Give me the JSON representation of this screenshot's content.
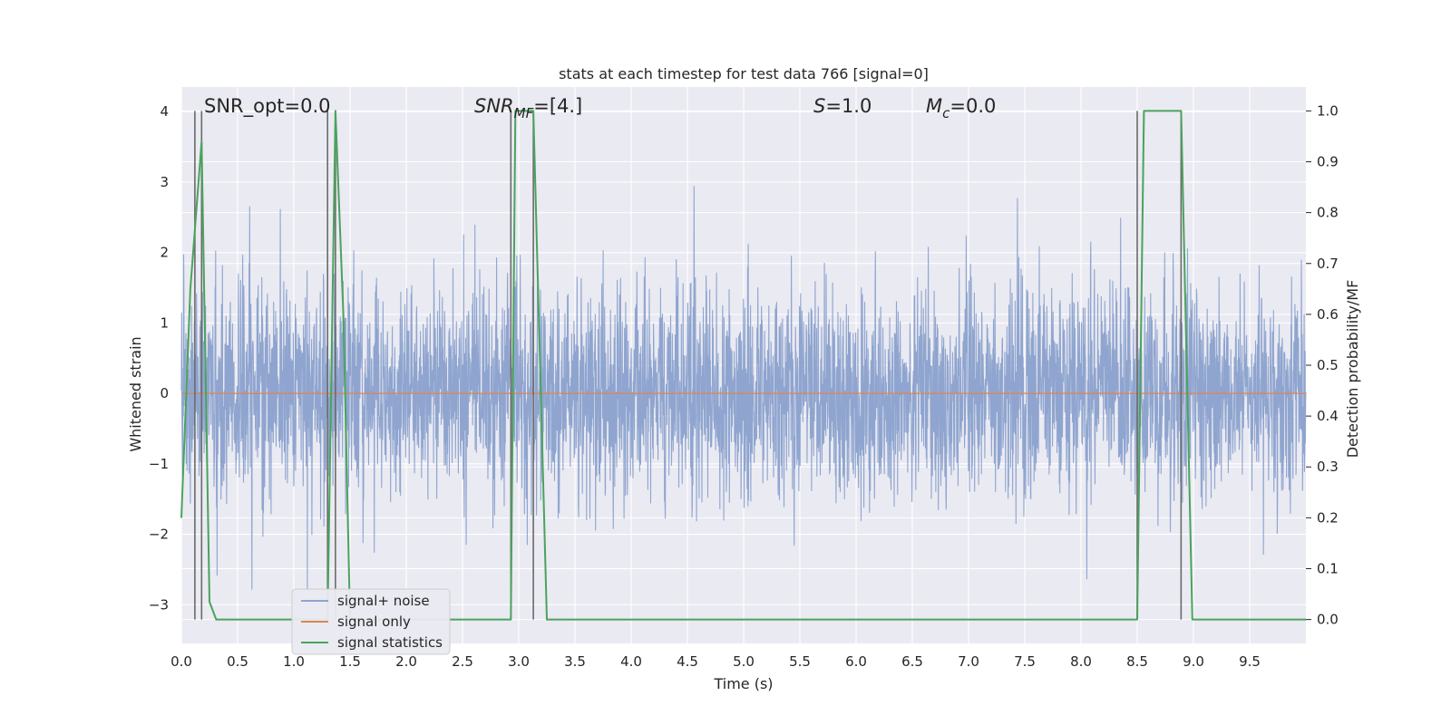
{
  "chart_data": {
    "type": "line",
    "title": "stats at each timestep for test data 766 [signal=0]",
    "xlabel": "Time (s)",
    "ylabel": "Whitened strain",
    "y2label": "Detection probability/MF",
    "xlim": [
      0.0,
      10.0
    ],
    "ylim": [
      -3.55,
      4.35
    ],
    "y2lim": [
      -0.047,
      1.047
    ],
    "x_ticks": [
      "0.0",
      "0.5",
      "1.0",
      "1.5",
      "2.0",
      "2.5",
      "3.0",
      "3.5",
      "4.0",
      "4.5",
      "5.0",
      "5.5",
      "6.0",
      "6.5",
      "7.0",
      "7.5",
      "8.0",
      "8.5",
      "9.0",
      "9.5"
    ],
    "y_ticks": [
      "4",
      "3",
      "2",
      "1",
      "0",
      "−1",
      "−2",
      "−3"
    ],
    "y2_ticks": [
      "1.0",
      "0.9",
      "0.8",
      "0.7",
      "0.6",
      "0.5",
      "0.4",
      "0.3",
      "0.2",
      "0.1",
      "0.0"
    ],
    "grid": true,
    "legend_position": "lower-left",
    "annotations": [
      {
        "prefix": "SNR_opt",
        "sub": "",
        "suffix": "=0.0",
        "italic": false
      },
      {
        "prefix": "SNR",
        "sub": "MF",
        "suffix": "=[4.]",
        "italic": true
      },
      {
        "prefix": "S",
        "sub": "",
        "suffix": "=1.0",
        "italic": true
      },
      {
        "prefix": "M",
        "sub": "c",
        "suffix": "=0.0",
        "italic": true
      }
    ],
    "series": [
      {
        "name": "signal+ noise",
        "color": "#8fa5cf",
        "kind": "noise",
        "sigma": 0.75,
        "seed": 766
      },
      {
        "name": "signal only",
        "color": "#dd8452",
        "kind": "constant",
        "value": 0.0
      },
      {
        "name": "signal statistics",
        "color": "#4aa35c",
        "kind": "line",
        "axis": "right",
        "x": [
          0.0,
          0.08,
          0.18,
          0.25,
          0.31,
          1.3,
          1.37,
          1.44,
          1.5,
          2.93,
          2.97,
          3.02,
          3.13,
          3.25,
          8.5,
          8.56,
          8.89,
          8.99,
          10.0
        ],
        "y": [
          0.2,
          0.65,
          0.94,
          0.035,
          0.0,
          0.0,
          1.0,
          0.6,
          0.0,
          0.0,
          1.0,
          1.0,
          1.0,
          0.0,
          0.0,
          1.0,
          1.0,
          0.0,
          0.0
        ]
      }
    ],
    "detection_markers": {
      "color": "#6b6b6b",
      "x": [
        0.12,
        0.18,
        1.3,
        1.37,
        2.93,
        3.13,
        8.5,
        8.89
      ],
      "y2_top": 1.0,
      "y2_bottom": 0.0
    }
  }
}
